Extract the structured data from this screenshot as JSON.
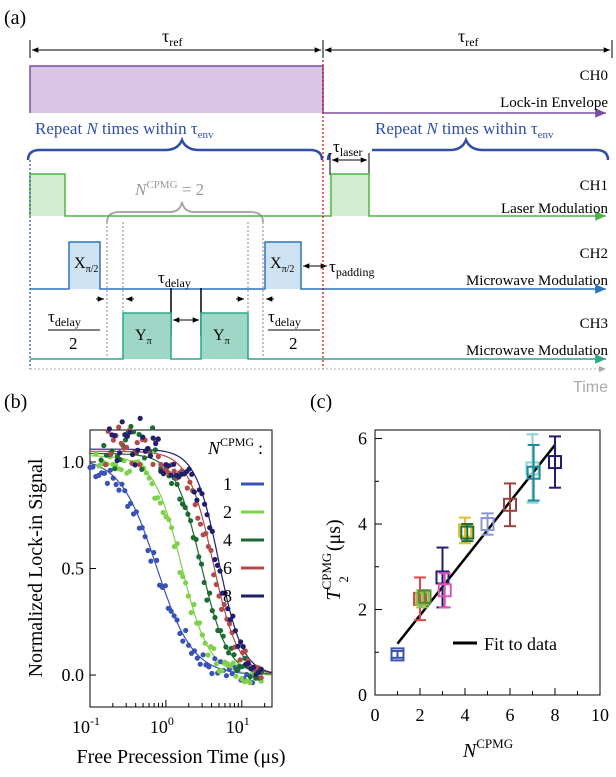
{
  "panel_a": {
    "label": "(a)",
    "tau_ref": "τ",
    "tau_ref_sub": "ref",
    "tau_laser": "τ",
    "tau_laser_sub": "laser",
    "repeat_text": "Repeat N times within τ",
    "repeat_text_sub": "env",
    "ncpmg_label": "N",
    "ncpmg_sup": "CPMG",
    "ncpmg_eq": " = 2",
    "tau_delay": "τ",
    "tau_delay_sub": "delay",
    "tau_padding": "τ",
    "tau_padding_sub": "padding",
    "half_den": "2",
    "x_pulse": "X",
    "y_pulse": "Y",
    "pi_sub": "π",
    "pi_over_2": "π/2",
    "time_label": "Time",
    "channels": [
      {
        "id": "CH0",
        "desc": "Lock-in Envelope",
        "color": "#7a4fa0",
        "fill": "#d9c6e6"
      },
      {
        "id": "CH1",
        "desc": "Laser Modulation",
        "color": "#4db548",
        "fill": "#d2ecd0"
      },
      {
        "id": "CH2",
        "desc": "Microwave Modulation",
        "color": "#2f74b5",
        "fill": "#cfe2f2"
      },
      {
        "id": "CH3",
        "desc": "Microwave Modulation",
        "color": "#2aa88a",
        "fill": "#9fd7c6"
      }
    ]
  },
  "panel_b": {
    "label": "(b)",
    "chart_data": {
      "type": "scatter",
      "xlabel": "Free Precession Time (μs)",
      "ylabel": "Normalized Lock-in Signal",
      "xscale": "log",
      "xlim": [
        0.1,
        25
      ],
      "ylim": [
        -0.15,
        1.15
      ],
      "yticks": [
        "0.0",
        "0.5",
        "1.0"
      ],
      "legend_title": "N",
      "legend_title_sup": "CPMG",
      "legend_title_suffix": ":",
      "series": [
        {
          "name": "1",
          "color": "#3a52b5",
          "t50": 0.75,
          "width": 0.55
        },
        {
          "name": "2",
          "color": "#7ed14a",
          "t50": 1.6,
          "width": 0.42
        },
        {
          "name": "4",
          "color": "#1d6a33",
          "t50": 2.9,
          "width": 0.4
        },
        {
          "name": "6",
          "color": "#b24a4a",
          "t50": 4.2,
          "width": 0.38
        },
        {
          "name": "8",
          "color": "#1f1f6e",
          "t50": 5.0,
          "width": 0.36
        }
      ]
    }
  },
  "panel_c": {
    "label": "(c)",
    "chart_data": {
      "type": "scatter",
      "xlabel": "N",
      "xlabel_sup": "CPMG",
      "ylabel": "T",
      "ylabel_sub": "2",
      "ylabel_sup": "CPMG",
      "ylabel_unit": "(μs)",
      "xlim": [
        0,
        10
      ],
      "ylim": [
        0,
        6.2
      ],
      "xticks": [
        0,
        2,
        4,
        6,
        8,
        10
      ],
      "yticks": [
        0,
        2,
        4,
        6
      ],
      "fit_label": "Fit to data",
      "fit": {
        "x": [
          1,
          8
        ],
        "y": [
          1.2,
          5.85
        ]
      },
      "points": [
        {
          "x": 1,
          "y": 0.95,
          "err": 0.08,
          "color": "#3a52b5"
        },
        {
          "x": 2,
          "y": 2.25,
          "err": 0.5,
          "color": "#e04545"
        },
        {
          "x": 2.1,
          "y": 2.25,
          "err": 0.2,
          "color": "#8bc34a"
        },
        {
          "x": 2.2,
          "y": 2.3,
          "err": 0.15,
          "color": "#5a8a3a"
        },
        {
          "x": 3,
          "y": 2.75,
          "err": 0.7,
          "color": "#1f1f6e"
        },
        {
          "x": 3.1,
          "y": 2.45,
          "err": 0.4,
          "color": "#e052b5"
        },
        {
          "x": 4,
          "y": 3.85,
          "err": 0.3,
          "color": "#e0c030"
        },
        {
          "x": 4.1,
          "y": 3.8,
          "err": 0.2,
          "color": "#1d6a33"
        },
        {
          "x": 5,
          "y": 4.0,
          "err": 0.25,
          "color": "#8a9ad0"
        },
        {
          "x": 6,
          "y": 4.45,
          "err": 0.5,
          "color": "#a04040"
        },
        {
          "x": 7,
          "y": 5.3,
          "err": 0.8,
          "color": "#8ad0d0"
        },
        {
          "x": 7.05,
          "y": 5.2,
          "err": 0.65,
          "color": "#1a8a9a"
        },
        {
          "x": 8,
          "y": 5.45,
          "err": 0.6,
          "color": "#1f1f6e"
        }
      ]
    }
  }
}
